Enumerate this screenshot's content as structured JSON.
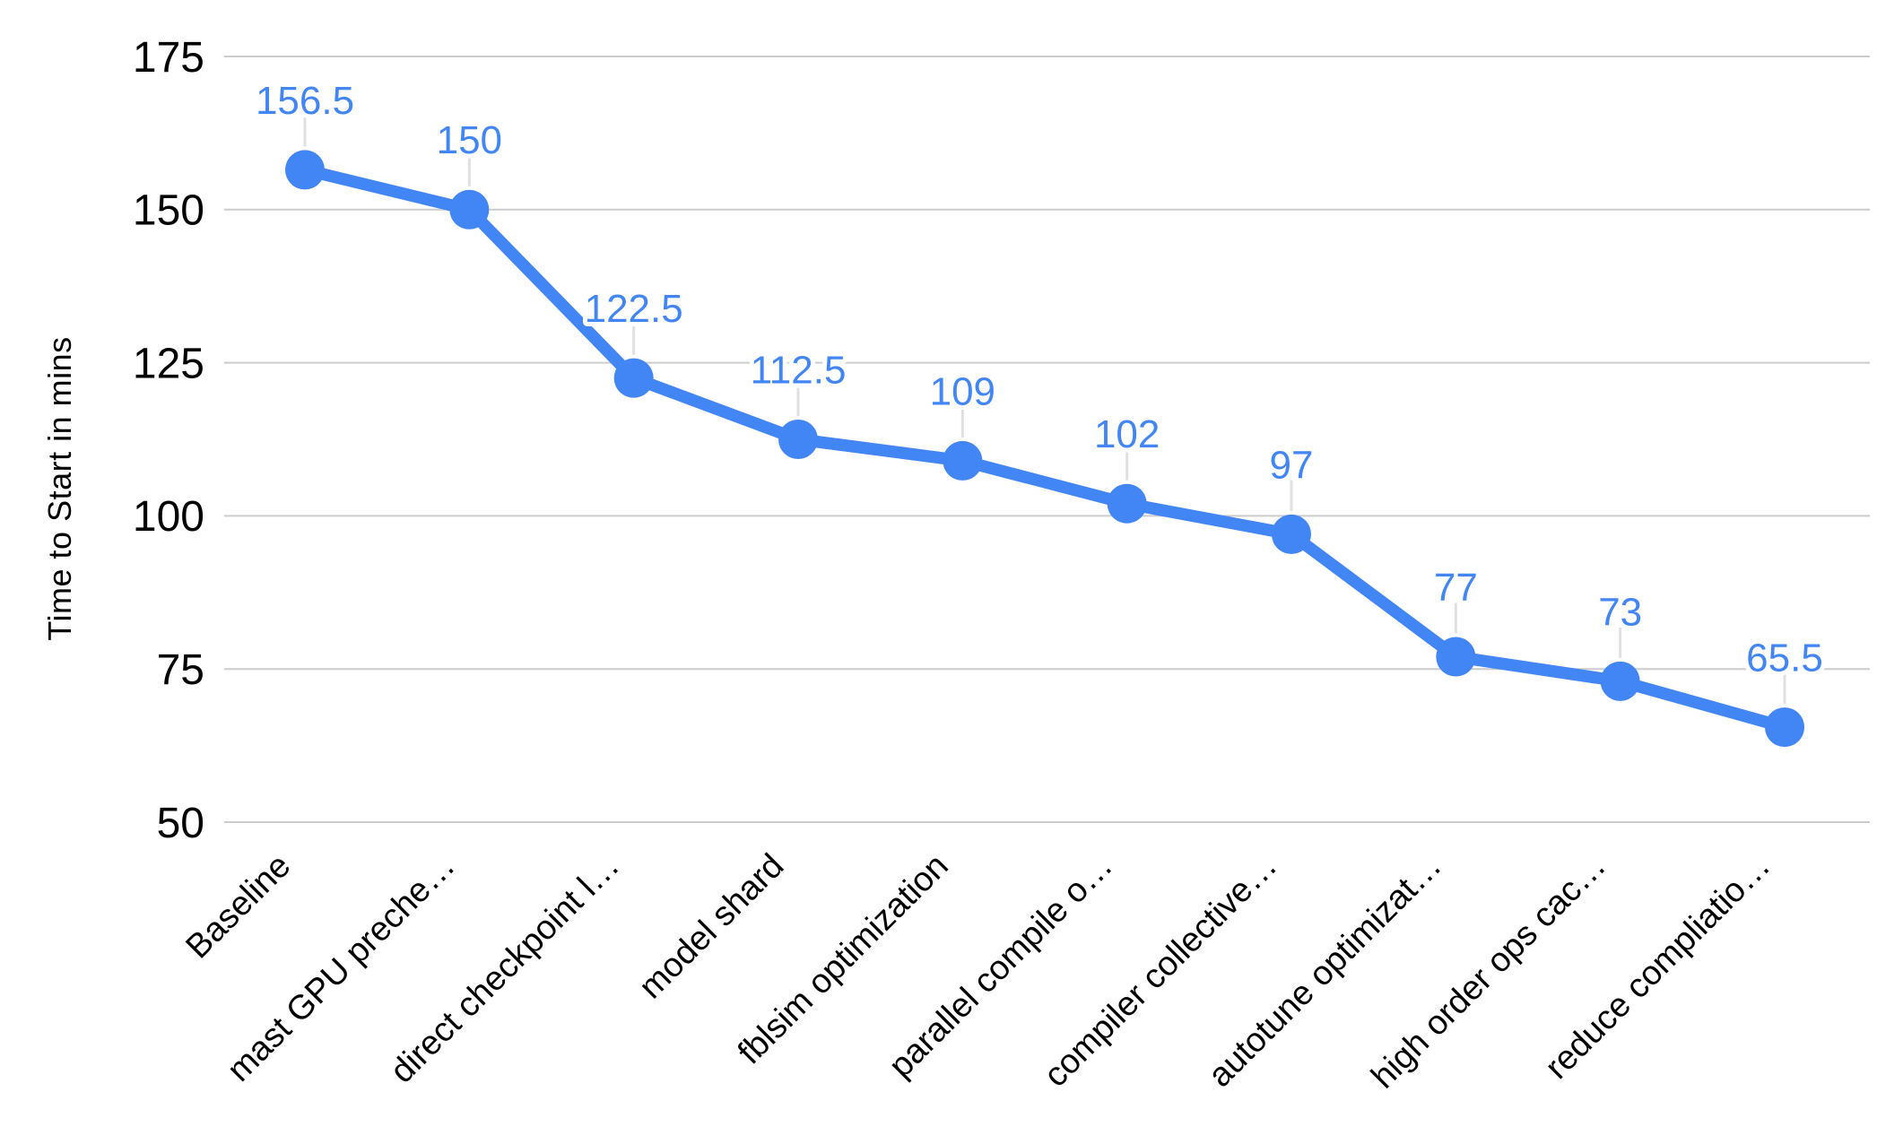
{
  "chart_data": {
    "type": "line",
    "title": "",
    "xlabel": "",
    "ylabel": "Time to Start in mins",
    "categories": [
      "Baseline",
      "mast GPU preche…",
      "direct checkpoint l…",
      "model shard",
      "fblsim optimization",
      "parallel compile o…",
      "compiler collective…",
      "autotune optimizat…",
      "high order ops cac…",
      "reduce compliatio…"
    ],
    "series": [
      {
        "name": "Time to Start in mins",
        "values": [
          156.5,
          150,
          122.5,
          112.5,
          109,
          102,
          97,
          77,
          73,
          65.5
        ]
      }
    ],
    "data_labels": [
      "156.5",
      "150",
      "122.5",
      "112.5",
      "109",
      "102",
      "97",
      "77",
      "73",
      "65.5"
    ],
    "yticks": [
      50,
      75,
      100,
      125,
      150,
      175
    ],
    "ytick_labels": [
      "50",
      "75",
      "100",
      "125",
      "150",
      "175"
    ],
    "ylim": [
      50,
      175
    ],
    "grid": true,
    "legend_position": "none",
    "marker": "circle",
    "colors": {
      "series": "#4285f4",
      "data_label": "#4285f4",
      "gridline": "#cccccc",
      "leader_line": "#e0e0e0",
      "axis_text": "#000000",
      "background": "#ffffff"
    }
  }
}
